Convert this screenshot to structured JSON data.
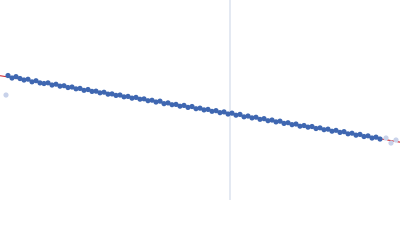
{
  "chart_data": {
    "type": "scatter",
    "xlim": [
      0,
      400
    ],
    "ylim": [
      0,
      200
    ],
    "series": [
      {
        "color": "#3f67b1",
        "x": [
          8,
          12,
          16,
          20,
          24,
          28,
          32,
          36,
          40,
          44,
          48,
          52,
          56,
          60,
          64,
          68,
          72,
          76,
          80,
          84,
          88,
          92,
          96,
          100,
          104,
          108,
          112,
          116,
          120,
          124,
          128,
          132,
          136,
          140,
          144,
          148,
          152,
          156,
          160,
          164,
          168,
          172,
          176,
          180,
          184,
          188,
          192,
          196,
          200,
          204,
          208,
          212,
          216,
          220,
          224,
          228,
          232,
          236,
          240,
          244,
          248,
          252,
          256,
          260,
          264,
          268,
          272,
          276,
          280,
          284,
          288,
          292,
          296,
          300,
          304,
          308,
          312,
          316,
          320,
          324,
          328,
          332,
          336,
          340,
          344,
          348,
          352,
          356,
          360,
          364,
          368,
          372,
          376,
          380
        ],
        "values": [
          124.5,
          122.0,
          123.4,
          121.5,
          120.0,
          120.8,
          118.2,
          119.3,
          117.1,
          116.5,
          117.2,
          115.0,
          115.8,
          113.9,
          114.3,
          112.5,
          113.0,
          111.2,
          111.6,
          109.7,
          110.5,
          108.6,
          108.9,
          107.2,
          107.8,
          105.9,
          106.1,
          104.6,
          105.0,
          103.2,
          103.6,
          101.9,
          102.6,
          100.8,
          101.2,
          99.3,
          99.8,
          98.0,
          98.9,
          96.4,
          97.1,
          95.3,
          95.6,
          93.8,
          94.6,
          92.6,
          93.5,
          91.3,
          91.9,
          90.1,
          90.6,
          88.7,
          89.4,
          87.4,
          88.1,
          86.0,
          86.9,
          84.8,
          85.6,
          83.2,
          84.0,
          82.1,
          82.8,
          80.7,
          81.4,
          79.3,
          80.0,
          78.1,
          78.9,
          76.6,
          77.3,
          75.4,
          76.0,
          73.8,
          74.5,
          72.9,
          73.5,
          71.5,
          72.2,
          70.3,
          70.9,
          68.8,
          69.7,
          67.6,
          68.4,
          66.2,
          66.8,
          64.9,
          65.6,
          63.5,
          64.2,
          62.0,
          62.9,
          61.0
        ]
      },
      {
        "color": "#c8d2ea",
        "x": [
          6,
          386,
          391,
          396
        ],
        "values": [
          105,
          62,
          57,
          60
        ]
      }
    ],
    "lines": [
      {
        "color": "#d0313a",
        "x": [
          0,
          400
        ],
        "values": [
          124.3,
          57.9
        ]
      }
    ],
    "vlines": [
      {
        "color": "#c9d3e6",
        "x": 230
      }
    ]
  }
}
